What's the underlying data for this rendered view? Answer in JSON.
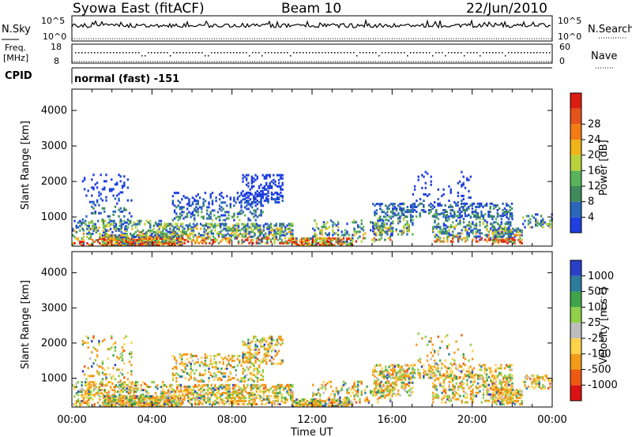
{
  "header": {
    "station": "Syowa East (fitACF)",
    "beam": "Beam 10",
    "date": "22/Jun/2010"
  },
  "top_panels": {
    "nsky_label": "N.Sky",
    "nsky_ticks": [
      "10^5",
      "10^0"
    ],
    "nsearch_label": "N.Search",
    "nsearch_ticks": [
      "10^5",
      "10^0"
    ],
    "freq_label_1": "Freq.",
    "freq_label_2": "[MHz]",
    "freq_ticks": [
      "18",
      "8"
    ],
    "nave_label": "Nave",
    "nave_ticks": [
      "60",
      "0"
    ],
    "cpid_label": "CPID",
    "cpid_value": "normal (fast) -151"
  },
  "colors": {
    "power": [
      "#1f3fe0",
      "#2a67b8",
      "#3f8a5a",
      "#58b35a",
      "#b8d23a",
      "#f0b419",
      "#f47c14",
      "#e5531a",
      "#dd1c12"
    ],
    "velocity": [
      "#dd1212",
      "#ee5a12",
      "#f19b19",
      "#ffd24a",
      "#bdbdbd",
      "#8fcf4a",
      "#3fa34a",
      "#2c7c9c",
      "#2a3fc8"
    ]
  },
  "chart_data": [
    {
      "type": "heatmap",
      "title": "Power",
      "ylabel": "Slant Range [km]",
      "xlabel": "Time UT",
      "x_ticks": [
        "00:00",
        "04:00",
        "08:00",
        "12:00",
        "16:00",
        "20:00",
        "00:00"
      ],
      "y_ticks": [
        1000,
        2000,
        3000,
        4000
      ],
      "ylim": [
        180,
        4600
      ],
      "colorbar_label": "Power [dB]",
      "colorbar_ticks": [
        4,
        8,
        12,
        16,
        20,
        24,
        28
      ],
      "colorbar_range": [
        0,
        30
      ]
    },
    {
      "type": "heatmap",
      "title": "Velocity",
      "ylabel": "Slant Range [km]",
      "xlabel": "Time UT",
      "x_ticks": [
        "00:00",
        "04:00",
        "08:00",
        "12:00",
        "16:00",
        "20:00",
        "00:00"
      ],
      "y_ticks": [
        1000,
        2000,
        3000,
        4000
      ],
      "ylim": [
        180,
        4600
      ],
      "colorbar_label": "Velocity [m s^-1]",
      "colorbar_ticks": [
        "1000",
        "500",
        "100",
        "25",
        "-25",
        "-100",
        "-500",
        "-1000"
      ]
    }
  ]
}
